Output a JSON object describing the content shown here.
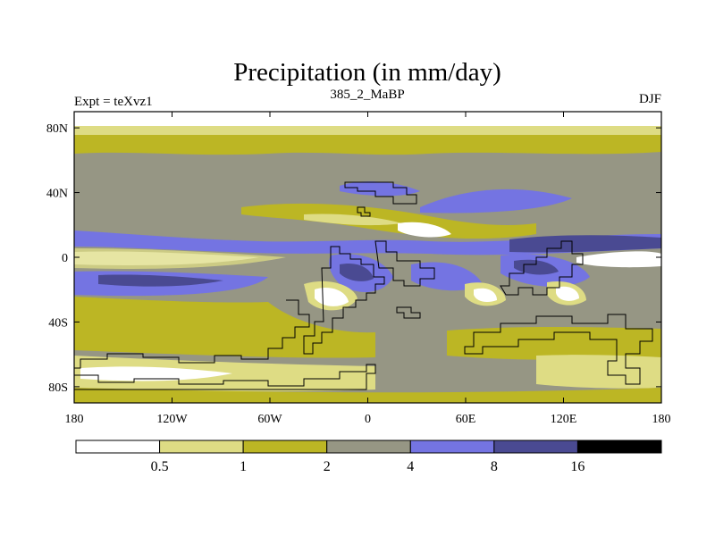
{
  "chart_data": {
    "type": "heatmap",
    "title": "Precipitation (in mm/day)",
    "left_string": "Expt = teXvz1",
    "center_string": "385_2_MaBP",
    "right_string": "DJF",
    "xlim": [
      -180,
      180
    ],
    "ylim": [
      -90,
      90
    ],
    "x_ticks": [
      {
        "value": -180,
        "label": "180"
      },
      {
        "value": -120,
        "label": "120W"
      },
      {
        "value": -60,
        "label": "60W"
      },
      {
        "value": 0,
        "label": "0"
      },
      {
        "value": 60,
        "label": "60E"
      },
      {
        "value": 120,
        "label": "120E"
      },
      {
        "value": 180,
        "label": "180"
      }
    ],
    "y_ticks": [
      {
        "value": 80,
        "label": "80N"
      },
      {
        "value": 40,
        "label": "40N"
      },
      {
        "value": 0,
        "label": "0"
      },
      {
        "value": -40,
        "label": "40S"
      },
      {
        "value": -80,
        "label": "80S"
      }
    ],
    "contour_levels": [
      {
        "value": 0.5,
        "label": "0.5"
      },
      {
        "value": 1,
        "label": "1"
      },
      {
        "value": 2,
        "label": "2"
      },
      {
        "value": 4,
        "label": "4"
      },
      {
        "value": 8,
        "label": "8"
      },
      {
        "value": 16,
        "label": "16"
      }
    ],
    "colors": [
      "#ffffff",
      "#dedc84",
      "#bcb624",
      "#969684",
      "#7474e2",
      "#4a4a92",
      "#000000"
    ],
    "line_color": "#000000",
    "units": "mm/day",
    "season": "DJF"
  }
}
